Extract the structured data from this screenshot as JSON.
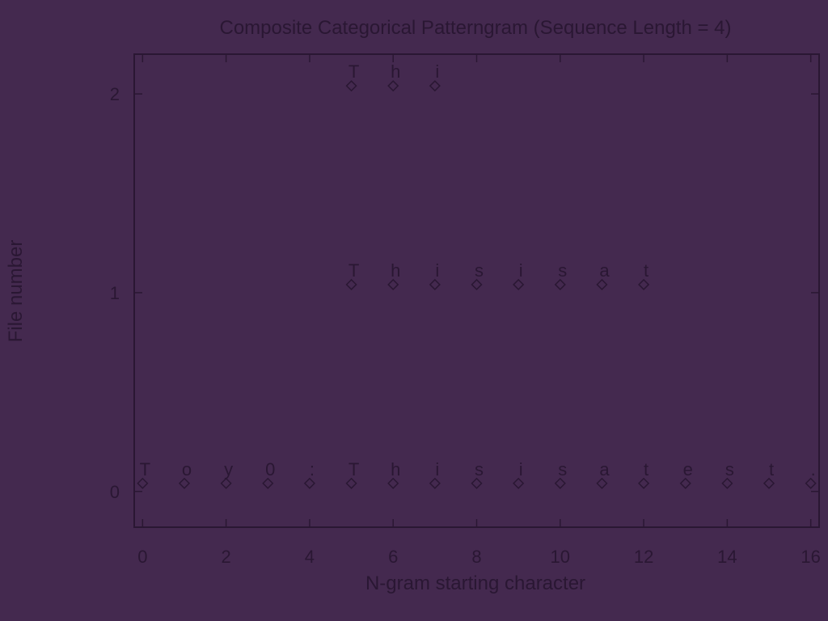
{
  "chart_data": {
    "type": "scatter",
    "title": "Composite Categorical Patterngram (Sequence Length = 4)",
    "xlabel": "N-gram starting character",
    "ylabel": "File number",
    "xlim": [
      -0.2,
      16.2
    ],
    "ylim": [
      -0.18,
      2.2
    ],
    "xticks": [
      0,
      2,
      4,
      6,
      8,
      10,
      12,
      14,
      16
    ],
    "yticks": [
      0,
      1,
      2
    ],
    "grid": false,
    "legend": "none",
    "marker": "diamond",
    "series": [
      {
        "file": 0,
        "x": [
          0,
          1,
          2,
          3,
          4,
          5,
          6,
          7,
          8,
          9,
          10,
          11,
          12,
          13,
          14,
          15,
          16
        ],
        "labels": [
          "T",
          "o",
          "y",
          "0",
          ":",
          "T",
          "h",
          "i",
          "s",
          "i",
          "s",
          "a",
          "t",
          "e",
          "s",
          "t",
          "."
        ]
      },
      {
        "file": 1,
        "x": [
          5,
          6,
          7,
          8,
          9,
          10,
          11,
          12
        ],
        "labels": [
          "T",
          "h",
          "i",
          "s",
          "i",
          "s",
          "a",
          "t"
        ]
      },
      {
        "file": 2,
        "x": [
          5,
          6,
          7
        ],
        "labels": [
          "T",
          "h",
          "i"
        ]
      }
    ]
  }
}
